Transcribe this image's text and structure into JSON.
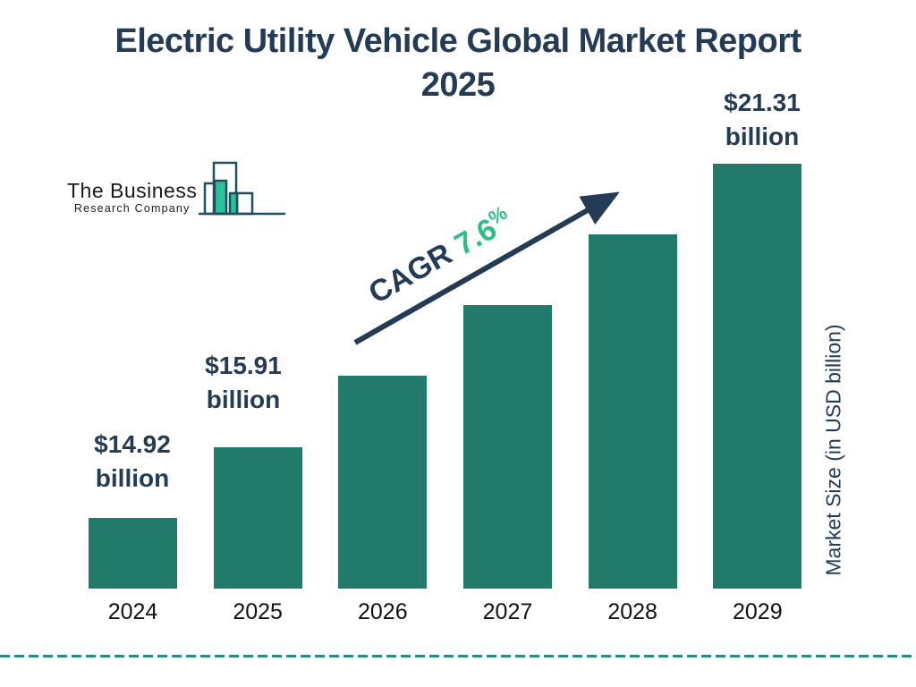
{
  "title": {
    "line1": "Electric Utility Vehicle Global Market Report",
    "line2": "2025"
  },
  "logo": {
    "line1": "The Business",
    "line2": "Research Company"
  },
  "cagr": {
    "label": "CAGR",
    "value": "7.6",
    "unit": "%"
  },
  "y_axis_label": "Market Size (in USD billion)",
  "chart_data": {
    "type": "bar",
    "title": "Electric Utility Vehicle Global Market Report 2025",
    "ylabel": "Market Size (in USD billion)",
    "xlabel": "",
    "categories": [
      "2024",
      "2025",
      "2026",
      "2027",
      "2028",
      "2029"
    ],
    "values": [
      14.92,
      15.91,
      17.12,
      18.42,
      19.82,
      21.31
    ],
    "labeled_points": [
      {
        "category": "2024",
        "amount": "$14.92",
        "unit": "billion"
      },
      {
        "category": "2025",
        "amount": "$15.91",
        "unit": "billion"
      },
      {
        "category": "2029",
        "amount": "$21.31",
        "unit": "billion"
      }
    ],
    "cagr_annotation": "CAGR 7.6%",
    "legend": false,
    "grid": false,
    "value_axis_ticks_visible": false,
    "bar_color": "#217A6A"
  },
  "colors": {
    "navy": "#243B55",
    "bar_teal": "#217A6A",
    "accent_green": "#2EBD84",
    "logo_green": "#2CC299",
    "dashed_line": "#2A8C80",
    "year_label": "#111111",
    "logo_outline": "#1D4F5E",
    "logo_text": "#1A1A1A"
  }
}
